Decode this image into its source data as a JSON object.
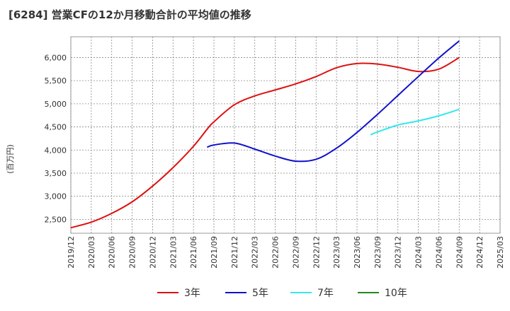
{
  "title": "[6284]  営業CFの12か月移動合計の平均値の推移",
  "chart_data": {
    "type": "line",
    "title": "[6284]  営業CFの12か月移動合計の平均値の推移",
    "ylabel": "(百万円)",
    "xlabel": "",
    "ylim": [
      2200,
      6450
    ],
    "yticks": [
      2500,
      3000,
      3500,
      4000,
      4500,
      5000,
      5500,
      6000
    ],
    "ytick_labels": [
      "2,500",
      "3,000",
      "3,500",
      "4,000",
      "4,500",
      "5,000",
      "5,500",
      "6,000"
    ],
    "xticks": [
      "2019/12",
      "2020/03",
      "2020/06",
      "2020/09",
      "2020/12",
      "2021/03",
      "2021/06",
      "2021/09",
      "2021/12",
      "2022/03",
      "2022/06",
      "2022/09",
      "2022/12",
      "2023/03",
      "2023/06",
      "2023/09",
      "2023/12",
      "2024/03",
      "2024/06",
      "2024/09",
      "2024/12",
      "2025/03"
    ],
    "grid": true,
    "legend_position": "bottom",
    "series": [
      {
        "name": "3年",
        "color": "#dd1111",
        "points": [
          [
            "2019/12",
            2320
          ],
          [
            "2020/03",
            2440
          ],
          [
            "2020/06",
            2630
          ],
          [
            "2020/09",
            2880
          ],
          [
            "2020/12",
            3220
          ],
          [
            "2021/03",
            3620
          ],
          [
            "2021/06",
            4080
          ],
          [
            "2021/08",
            4450
          ],
          [
            "2021/09",
            4610
          ],
          [
            "2021/12",
            4980
          ],
          [
            "2022/03",
            5170
          ],
          [
            "2022/06",
            5300
          ],
          [
            "2022/09",
            5430
          ],
          [
            "2022/12",
            5590
          ],
          [
            "2023/03",
            5780
          ],
          [
            "2023/06",
            5870
          ],
          [
            "2023/09",
            5860
          ],
          [
            "2023/12",
            5790
          ],
          [
            "2024/03",
            5700
          ],
          [
            "2024/06",
            5750
          ],
          [
            "2024/09",
            6000
          ]
        ]
      },
      {
        "name": "5年",
        "color": "#1111cc",
        "points": [
          [
            "2021/08",
            4060
          ],
          [
            "2021/09",
            4110
          ],
          [
            "2021/12",
            4150
          ],
          [
            "2022/03",
            4020
          ],
          [
            "2022/06",
            3870
          ],
          [
            "2022/09",
            3760
          ],
          [
            "2022/12",
            3800
          ],
          [
            "2023/03",
            4040
          ],
          [
            "2023/06",
            4380
          ],
          [
            "2023/09",
            4770
          ],
          [
            "2023/12",
            5180
          ],
          [
            "2024/03",
            5590
          ],
          [
            "2024/06",
            5990
          ],
          [
            "2024/09",
            6360
          ]
        ]
      },
      {
        "name": "7年",
        "color": "#33e8ee",
        "points": [
          [
            "2023/08",
            4330
          ],
          [
            "2023/09",
            4390
          ],
          [
            "2023/12",
            4540
          ],
          [
            "2024/03",
            4630
          ],
          [
            "2024/06",
            4740
          ],
          [
            "2024/09",
            4880
          ]
        ]
      },
      {
        "name": "10年",
        "color": "#228822",
        "points": []
      }
    ]
  }
}
